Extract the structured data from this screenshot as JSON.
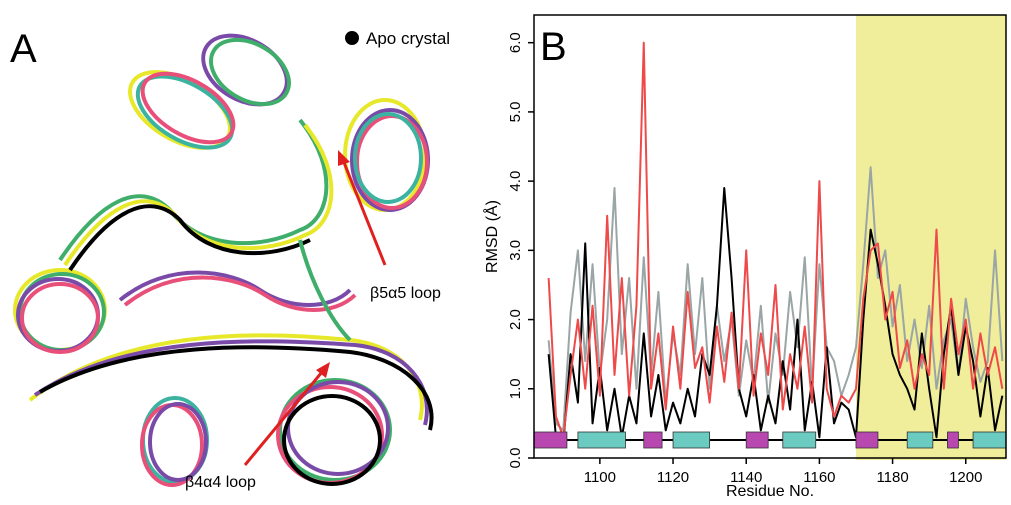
{
  "panel_a": {
    "label": "A",
    "legend": "Apo crystal",
    "annotations": [
      "β5α5 loop",
      "β4α4 loop"
    ]
  },
  "chart_data": {
    "type": "line",
    "panel_label": "B",
    "xlabel": "Residue No.",
    "ylabel": "RMSD (Å)",
    "xlim": [
      1082,
      1211
    ],
    "ylim": [
      0,
      6.4
    ],
    "xticks": [
      1100,
      1120,
      1140,
      1160,
      1180,
      1200
    ],
    "yticks": [
      {
        "value": 0,
        "label": "0.0"
      },
      {
        "value": 1,
        "label": "1.0"
      },
      {
        "value": 2,
        "label": "2.0"
      },
      {
        "value": 3,
        "label": "3.0"
      },
      {
        "value": 4,
        "label": "4.0"
      },
      {
        "value": 5,
        "label": "5.0"
      },
      {
        "value": 6,
        "label": "6.0"
      }
    ],
    "shaded_region": {
      "x": [
        1170,
        1211
      ],
      "color": "#f0ee9a"
    },
    "secondary_structure": [
      {
        "start": 1082,
        "end": 1091,
        "color": "#b847b0"
      },
      {
        "start": 1094,
        "end": 1107,
        "color": "#6ccbc0"
      },
      {
        "start": 1112,
        "end": 1117,
        "color": "#b847b0"
      },
      {
        "start": 1120,
        "end": 1130,
        "color": "#6ccbc0"
      },
      {
        "start": 1140,
        "end": 1146,
        "color": "#b847b0"
      },
      {
        "start": 1150,
        "end": 1159,
        "color": "#6ccbc0"
      },
      {
        "start": 1170,
        "end": 1176,
        "color": "#b847b0"
      },
      {
        "start": 1184,
        "end": 1191,
        "color": "#6ccbc0"
      },
      {
        "start": 1195,
        "end": 1198,
        "color": "#b847b0"
      },
      {
        "start": 1202,
        "end": 1211,
        "color": "#6ccbc0"
      }
    ],
    "x": [
      1086,
      1088,
      1090,
      1092,
      1094,
      1096,
      1098,
      1100,
      1102,
      1104,
      1106,
      1108,
      1110,
      1112,
      1114,
      1116,
      1118,
      1120,
      1122,
      1124,
      1126,
      1128,
      1130,
      1132,
      1134,
      1136,
      1138,
      1140,
      1142,
      1144,
      1146,
      1148,
      1150,
      1152,
      1154,
      1156,
      1158,
      1160,
      1162,
      1164,
      1166,
      1168,
      1170,
      1172,
      1174,
      1176,
      1178,
      1180,
      1182,
      1184,
      1186,
      1188,
      1190,
      1192,
      1194,
      1196,
      1198,
      1200,
      1202,
      1204,
      1206,
      1208,
      1210
    ],
    "series": [
      {
        "color": "#9aa5a5",
        "values": [
          1.7,
          0.5,
          0.4,
          2.1,
          3.0,
          1.4,
          2.8,
          1.2,
          2.0,
          3.9,
          1.5,
          2.6,
          1.0,
          2.9,
          1.2,
          2.4,
          0.8,
          1.8,
          1.2,
          2.8,
          1.5,
          2.6,
          1.0,
          2.2,
          1.4,
          2.0,
          0.9,
          1.7,
          1.1,
          2.2,
          0.8,
          1.8,
          1.2,
          2.4,
          1.6,
          2.9,
          1.0,
          2.8,
          1.6,
          1.4,
          0.9,
          1.2,
          1.6,
          2.8,
          4.2,
          2.6,
          3.0,
          1.9,
          2.5,
          1.4,
          2.0,
          1.3,
          2.2,
          1.0,
          1.7,
          2.0,
          1.2,
          2.3,
          1.6,
          1.1,
          1.4,
          3.0,
          1.4
        ]
      },
      {
        "color": "#000000",
        "values": [
          1.5,
          0.3,
          0.2,
          1.5,
          0.8,
          3.1,
          0.5,
          1.3,
          0.4,
          1.0,
          0.3,
          0.9,
          0.5,
          1.8,
          0.6,
          1.2,
          0.4,
          0.8,
          0.5,
          1.0,
          0.6,
          1.5,
          1.2,
          2.2,
          3.9,
          2.6,
          1.0,
          0.6,
          1.2,
          0.4,
          0.9,
          0.5,
          1.4,
          0.7,
          2.0,
          0.4,
          1.1,
          0.3,
          1.6,
          0.5,
          0.8,
          0.7,
          0.3,
          2.0,
          3.3,
          2.8,
          2.2,
          1.5,
          1.2,
          1.0,
          0.7,
          1.8,
          1.0,
          0.3,
          1.5,
          2.2,
          1.2,
          1.9,
          1.4,
          0.6,
          1.3,
          0.4,
          0.9
        ]
      },
      {
        "color": "#ef4a4a",
        "values": [
          2.6,
          0.6,
          0.3,
          1.2,
          2.0,
          1.0,
          2.2,
          0.9,
          3.5,
          1.2,
          2.6,
          0.9,
          2.2,
          6.0,
          1.0,
          1.8,
          0.7,
          1.9,
          1.0,
          2.4,
          1.3,
          1.6,
          0.8,
          1.9,
          1.1,
          2.1,
          1.0,
          3.0,
          0.9,
          1.8,
          1.2,
          2.5,
          0.7,
          1.5,
          1.0,
          1.9,
          0.8,
          4.0,
          1.0,
          0.6,
          0.9,
          0.8,
          1.0,
          2.3,
          3.0,
          3.1,
          2.0,
          2.4,
          1.3,
          1.7,
          1.0,
          1.5,
          1.2,
          3.3,
          1.0,
          2.3,
          1.5,
          2.0,
          1.0,
          1.8,
          1.2,
          1.6,
          1.0
        ]
      }
    ]
  }
}
